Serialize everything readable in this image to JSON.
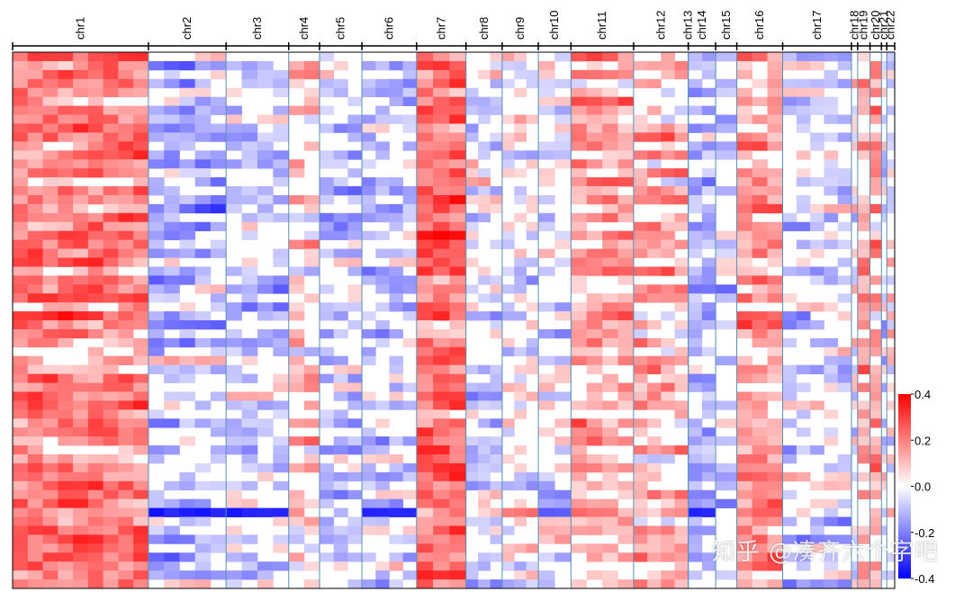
{
  "chart_data": {
    "type": "heatmap",
    "title": "",
    "xlabel": "",
    "ylabel": "",
    "n_samples": 60,
    "chromosomes": [
      {
        "name": "chr1",
        "span": [
          0.0,
          0.154
        ]
      },
      {
        "name": "chr2",
        "span": [
          0.154,
          0.242
        ]
      },
      {
        "name": "chr3",
        "span": [
          0.242,
          0.313
        ]
      },
      {
        "name": "chr4",
        "span": [
          0.313,
          0.348
        ]
      },
      {
        "name": "chr5",
        "span": [
          0.348,
          0.396
        ]
      },
      {
        "name": "chr6",
        "span": [
          0.396,
          0.458
        ]
      },
      {
        "name": "chr7",
        "span": [
          0.458,
          0.514
        ]
      },
      {
        "name": "chr8",
        "span": [
          0.514,
          0.555
        ]
      },
      {
        "name": "chr9",
        "span": [
          0.555,
          0.596
        ]
      },
      {
        "name": "chr10",
        "span": [
          0.596,
          0.633
        ]
      },
      {
        "name": "chr11",
        "span": [
          0.633,
          0.704
        ]
      },
      {
        "name": "chr12",
        "span": [
          0.704,
          0.766
        ]
      },
      {
        "name": "chr13",
        "span": [
          0.766,
          0.766
        ]
      },
      {
        "name": "chr14",
        "span": [
          0.766,
          0.797
        ]
      },
      {
        "name": "chr15",
        "span": [
          0.797,
          0.821
        ]
      },
      {
        "name": "chr16",
        "span": [
          0.821,
          0.873
        ]
      },
      {
        "name": "chr17",
        "span": [
          0.873,
          0.951
        ]
      },
      {
        "name": "chr18",
        "span": [
          0.951,
          0.958
        ]
      },
      {
        "name": "chr19",
        "span": [
          0.958,
          0.972
        ]
      },
      {
        "name": "chr20",
        "span": [
          0.972,
          0.985
        ]
      },
      {
        "name": "chr21",
        "span": [
          0.985,
          0.991
        ]
      },
      {
        "name": "chr22",
        "span": [
          0.991,
          1.0
        ]
      }
    ],
    "chromosome_bias": {
      "chr1": 0.18,
      "chr2": -0.08,
      "chr3": -0.05,
      "chr4": 0.06,
      "chr5": -0.07,
      "chr6": -0.06,
      "chr7": 0.2,
      "chr8": -0.04,
      "chr9": 0.0,
      "chr10": -0.02,
      "chr11": 0.12,
      "chr12": 0.09,
      "chr13": -0.05,
      "chr14": -0.08,
      "chr15": -0.05,
      "chr16": 0.14,
      "chr17": -0.03,
      "chr18": 0.0,
      "chr19": 0.12,
      "chr20": 0.1,
      "chr21": -0.02,
      "chr22": 0.0
    },
    "highlight_rows": [
      {
        "sample_index": 51,
        "chromosomes": [
          "chr2",
          "chr3",
          "chr6",
          "chr14"
        ],
        "value": -0.35
      },
      {
        "sample_index": 51,
        "chromosomes": [
          "chr9"
        ],
        "value": 0.22
      },
      {
        "sample_index": 51,
        "chromosomes": [
          "chr10"
        ],
        "value": -0.25
      },
      {
        "sample_index": 35,
        "chromosomes": [
          "chr19"
        ],
        "value": 0.3
      }
    ],
    "color_scale": {
      "min": -0.4,
      "max": 0.4,
      "low_color": "#0000ff",
      "mid_color": "#ffffff",
      "high_color": "#ff0000",
      "ticks": [
        "0.4",
        "0.2",
        "0.0",
        "-0.2",
        "-0.4"
      ],
      "tick_values": [
        0.4,
        0.2,
        0.0,
        -0.2,
        -0.4
      ]
    },
    "separator_color": "#5a8fb0"
  },
  "watermark": "知乎 @凑齐六个字吧"
}
